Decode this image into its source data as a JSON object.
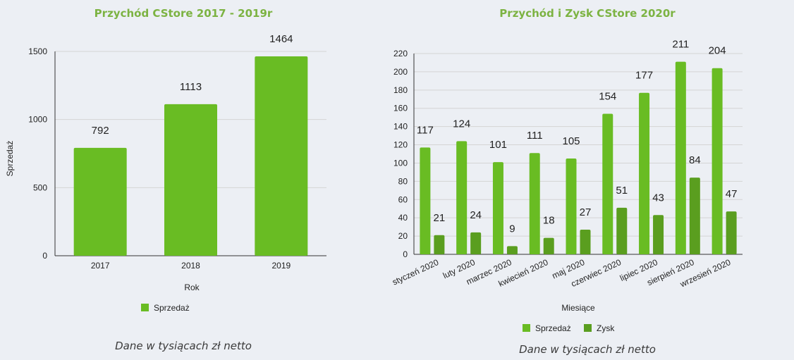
{
  "colors": {
    "sales": "#69bc23",
    "profit": "#5a9e1f",
    "grid": "#d4d4d4",
    "axis": "#333333",
    "title": "#7cb342",
    "background": "#eceff4"
  },
  "notes": {
    "left": "Dane w tysiącach zł netto",
    "right": "Dane w tysiącach zł netto"
  },
  "chart_data": [
    {
      "type": "bar",
      "title": "Przychód CStore 2017 - 2019r",
      "xlabel": "Rok",
      "ylabel": "Sprzedaż",
      "categories": [
        "2017",
        "2018",
        "2019"
      ],
      "series": [
        {
          "name": "Sprzedaż",
          "values": [
            792,
            1113,
            1464
          ]
        }
      ],
      "ylim": [
        0,
        1500
      ],
      "yticks": [
        0,
        500,
        1000,
        1500
      ],
      "legend": "bottom-left",
      "grid": true
    },
    {
      "type": "bar",
      "title": "Przychód i Zysk CStore 2020r",
      "xlabel": "Miesiące",
      "ylabel": "",
      "categories": [
        "styczeń 2020",
        "luty 2020",
        "marzec 2020",
        "kwiecień 2020",
        "maj 2020",
        "czerwiec 2020",
        "lipiec 2020",
        "sierpień 2020",
        "wrzesień 2020"
      ],
      "series": [
        {
          "name": "Sprzedaż",
          "values": [
            117,
            124,
            101,
            111,
            105,
            154,
            177,
            211,
            204
          ]
        },
        {
          "name": "Zysk",
          "values": [
            21,
            24,
            9,
            18,
            27,
            51,
            43,
            84,
            47
          ]
        }
      ],
      "ylim": [
        0,
        220
      ],
      "yticks": [
        0,
        20,
        40,
        60,
        80,
        100,
        120,
        140,
        160,
        180,
        200,
        220
      ],
      "legend": "bottom-center",
      "grid": true
    }
  ]
}
